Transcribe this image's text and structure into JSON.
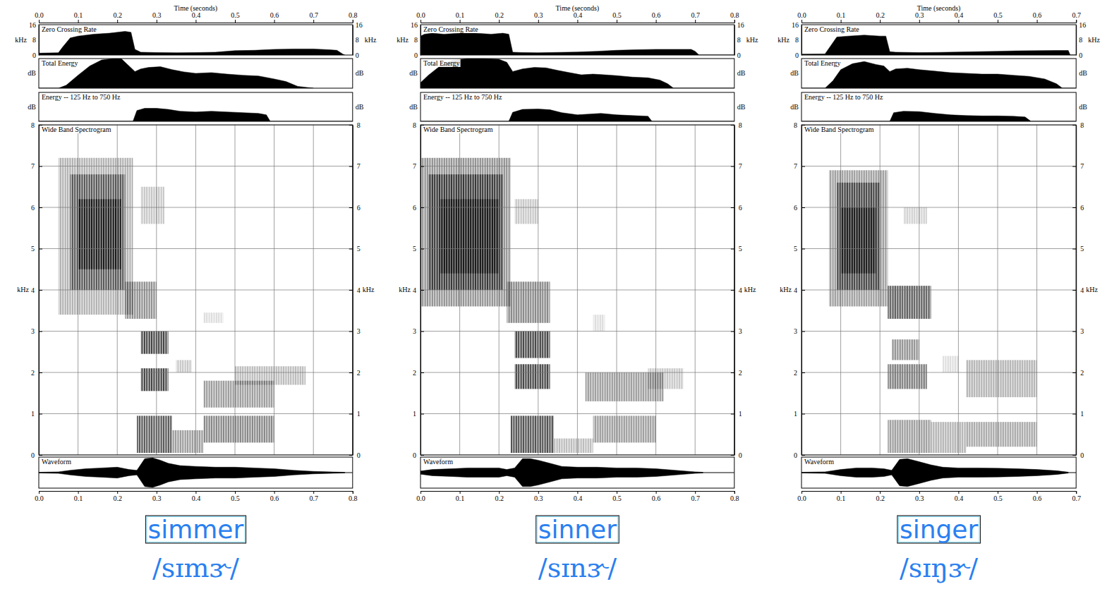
{
  "chart_data": [
    {
      "type": "spectrogram",
      "title": "simmer",
      "subtitle": "/sɪmɝ/",
      "x_label": "Time (seconds)",
      "xlim": [
        0,
        0.8
      ],
      "xticks": [
        {
          "value": 0,
          "label": "0.0"
        },
        0.1,
        0.2,
        0.3,
        0.4,
        0.5,
        0.6,
        0.7,
        0.8
      ],
      "tracks": [
        {
          "type": "area",
          "title": "Zero Crossing Rate",
          "y_label": "kHz",
          "ylim": [
            0,
            16
          ],
          "yticks": [
            0,
            8,
            16
          ],
          "x": [
            0,
            0.05,
            0.06,
            0.08,
            0.1,
            0.14,
            0.18,
            0.2,
            0.22,
            0.235,
            0.245,
            0.26,
            0.3,
            0.35,
            0.4,
            0.45,
            0.5,
            0.55,
            0.6,
            0.65,
            0.7,
            0.74,
            0.76,
            0.775,
            0.78
          ],
          "values": [
            1,
            1.2,
            4,
            9,
            10,
            11,
            11.5,
            12,
            12.5,
            12,
            3,
            1.5,
            1.3,
            1.2,
            1.3,
            1.5,
            2.3,
            2.5,
            3,
            3.2,
            3.2,
            2.8,
            2.5,
            0.5,
            0
          ]
        },
        {
          "type": "area",
          "title": "Total Energy",
          "y_label": "dB",
          "ylim": [
            0,
            80
          ],
          "tick_labels": false,
          "x": [
            0,
            0.05,
            0.07,
            0.1,
            0.13,
            0.16,
            0.19,
            0.21,
            0.23,
            0.245,
            0.26,
            0.28,
            0.31,
            0.34,
            0.37,
            0.4,
            0.44,
            0.48,
            0.52,
            0.56,
            0.6,
            0.63,
            0.66,
            0.7
          ],
          "values": [
            0,
            0,
            8,
            35,
            60,
            76,
            80,
            80,
            60,
            45,
            52,
            56,
            58,
            50,
            44,
            40,
            42,
            38,
            35,
            33,
            25,
            18,
            5,
            0
          ]
        },
        {
          "type": "area",
          "title": "Energy -- 125 Hz to 750 Hz",
          "y_label": "dB",
          "ylim": [
            0,
            80
          ],
          "tick_labels": false,
          "x": [
            0,
            0.24,
            0.25,
            0.27,
            0.3,
            0.33,
            0.36,
            0.4,
            0.44,
            0.48,
            0.52,
            0.56,
            0.58,
            0.59,
            0.8
          ],
          "values": [
            0,
            0,
            30,
            36,
            36,
            33,
            28,
            26,
            28,
            26,
            24,
            22,
            18,
            0,
            0
          ]
        }
      ],
      "spectrogram": {
        "title": "Wide Band Spectrogram",
        "y_label": "kHz",
        "ylim": [
          0,
          8
        ],
        "yticks": [
          0,
          1,
          2,
          3,
          4,
          5,
          6,
          7,
          8
        ],
        "grid": true,
        "cells": [
          {
            "t0": 0.05,
            "t1": 0.24,
            "f0": 3.4,
            "f1": 7.2,
            "level": 0.35
          },
          {
            "t0": 0.08,
            "t1": 0.22,
            "f0": 4.0,
            "f1": 6.8,
            "level": 0.6
          },
          {
            "t0": 0.1,
            "t1": 0.21,
            "f0": 4.5,
            "f1": 6.2,
            "level": 0.85
          },
          {
            "t0": 0.25,
            "t1": 0.34,
            "f0": 0.05,
            "f1": 0.95,
            "level": 0.75
          },
          {
            "t0": 0.26,
            "t1": 0.33,
            "f0": 1.55,
            "f1": 2.1,
            "level": 0.85
          },
          {
            "t0": 0.26,
            "t1": 0.33,
            "f0": 2.45,
            "f1": 3.0,
            "level": 0.85
          },
          {
            "t0": 0.22,
            "t1": 0.3,
            "f0": 3.3,
            "f1": 4.2,
            "level": 0.5
          },
          {
            "t0": 0.26,
            "t1": 0.32,
            "f0": 5.6,
            "f1": 6.5,
            "level": 0.25
          },
          {
            "t0": 0.34,
            "t1": 0.42,
            "f0": 0.05,
            "f1": 0.6,
            "level": 0.45
          },
          {
            "t0": 0.35,
            "t1": 0.39,
            "f0": 2.0,
            "f1": 2.3,
            "level": 0.25
          },
          {
            "t0": 0.42,
            "t1": 0.6,
            "f0": 0.3,
            "f1": 0.95,
            "level": 0.55
          },
          {
            "t0": 0.42,
            "t1": 0.6,
            "f0": 1.15,
            "f1": 1.8,
            "level": 0.45
          },
          {
            "t0": 0.5,
            "t1": 0.68,
            "f0": 1.7,
            "f1": 2.15,
            "level": 0.3
          },
          {
            "t0": 0.42,
            "t1": 0.47,
            "f0": 3.2,
            "f1": 3.45,
            "level": 0.15
          }
        ]
      },
      "waveform": {
        "type": "mirrored_area",
        "title": "Waveform",
        "ylim": [
          -1,
          1
        ],
        "tick_labels": false,
        "x": [
          0,
          0.05,
          0.08,
          0.12,
          0.16,
          0.2,
          0.23,
          0.25,
          0.27,
          0.29,
          0.31,
          0.33,
          0.36,
          0.4,
          0.45,
          0.5,
          0.55,
          0.6,
          0.65,
          0.7,
          0.75,
          0.78
        ],
        "values": [
          0.02,
          0.05,
          0.15,
          0.25,
          0.3,
          0.35,
          0.2,
          0.15,
          0.9,
          0.95,
          0.8,
          0.6,
          0.45,
          0.4,
          0.35,
          0.35,
          0.3,
          0.25,
          0.15,
          0.08,
          0.04,
          0.02
        ]
      }
    },
    {
      "type": "spectrogram",
      "title": "sinner",
      "subtitle": "/sɪnɝ/",
      "x_label": "Time (seconds)",
      "xlim": [
        0,
        0.8
      ],
      "xticks": [
        {
          "value": 0,
          "label": "0.0"
        },
        0.1,
        0.2,
        0.3,
        0.4,
        0.5,
        0.6,
        0.7,
        0.8
      ],
      "tracks": [
        {
          "type": "area",
          "title": "Zero Crossing Rate",
          "y_label": "kHz",
          "ylim": [
            0,
            16
          ],
          "yticks": [
            0,
            8,
            16
          ],
          "x": [
            0,
            0.01,
            0.03,
            0.06,
            0.1,
            0.14,
            0.18,
            0.21,
            0.225,
            0.235,
            0.26,
            0.3,
            0.35,
            0.4,
            0.45,
            0.5,
            0.55,
            0.6,
            0.65,
            0.69,
            0.7,
            0.71,
            0.8
          ],
          "values": [
            10,
            11,
            11.5,
            11,
            11.5,
            11.5,
            11,
            11.5,
            11,
            1.5,
            1.3,
            1.2,
            1.4,
            1.6,
            2,
            2.5,
            2.8,
            3,
            3,
            3,
            2,
            0,
            0
          ]
        },
        {
          "type": "area",
          "title": "Total Energy",
          "y_label": "dB",
          "ylim": [
            0,
            80
          ],
          "tick_labels": false,
          "x": [
            0,
            0.02,
            0.05,
            0.08,
            0.12,
            0.16,
            0.2,
            0.22,
            0.235,
            0.26,
            0.29,
            0.32,
            0.35,
            0.38,
            0.41,
            0.44,
            0.47,
            0.5,
            0.54,
            0.58,
            0.61,
            0.63,
            0.645,
            0.8
          ],
          "values": [
            15,
            35,
            60,
            75,
            80,
            80,
            78,
            70,
            45,
            52,
            56,
            55,
            48,
            42,
            36,
            38,
            36,
            34,
            30,
            28,
            22,
            12,
            0,
            0
          ]
        },
        {
          "type": "area",
          "title": "Energy -- 125 Hz to 750 Hz",
          "y_label": "dB",
          "ylim": [
            0,
            80
          ],
          "tick_labels": false,
          "x": [
            0,
            0.225,
            0.235,
            0.26,
            0.3,
            0.33,
            0.36,
            0.4,
            0.43,
            0.46,
            0.5,
            0.54,
            0.58,
            0.59,
            0.8
          ],
          "values": [
            0,
            0,
            25,
            33,
            34,
            32,
            24,
            18,
            20,
            22,
            18,
            16,
            14,
            0,
            0
          ]
        }
      ],
      "spectrogram": {
        "title": "Wide Band Spectrogram",
        "y_label": "kHz",
        "ylim": [
          0,
          8
        ],
        "yticks": [
          0,
          1,
          2,
          3,
          4,
          5,
          6,
          7,
          8
        ],
        "grid": true,
        "cells": [
          {
            "t0": 0.0,
            "t1": 0.23,
            "f0": 3.6,
            "f1": 7.2,
            "level": 0.5
          },
          {
            "t0": 0.02,
            "t1": 0.21,
            "f0": 4.0,
            "f1": 6.8,
            "level": 0.75
          },
          {
            "t0": 0.05,
            "t1": 0.2,
            "f0": 4.4,
            "f1": 6.2,
            "level": 0.9
          },
          {
            "t0": 0.23,
            "t1": 0.34,
            "f0": 0.05,
            "f1": 0.95,
            "level": 0.8
          },
          {
            "t0": 0.24,
            "t1": 0.33,
            "f0": 1.6,
            "f1": 2.2,
            "level": 0.85
          },
          {
            "t0": 0.24,
            "t1": 0.33,
            "f0": 2.35,
            "f1": 3.0,
            "level": 0.85
          },
          {
            "t0": 0.22,
            "t1": 0.33,
            "f0": 3.2,
            "f1": 4.2,
            "level": 0.55
          },
          {
            "t0": 0.24,
            "t1": 0.3,
            "f0": 5.6,
            "f1": 6.2,
            "level": 0.25
          },
          {
            "t0": 0.34,
            "t1": 0.44,
            "f0": 0.05,
            "f1": 0.4,
            "level": 0.3
          },
          {
            "t0": 0.44,
            "t1": 0.6,
            "f0": 0.3,
            "f1": 0.95,
            "level": 0.45
          },
          {
            "t0": 0.42,
            "t1": 0.62,
            "f0": 1.3,
            "f1": 2.0,
            "level": 0.45
          },
          {
            "t0": 0.58,
            "t1": 0.67,
            "f0": 1.6,
            "f1": 2.1,
            "level": 0.25
          },
          {
            "t0": 0.44,
            "t1": 0.47,
            "f0": 3.0,
            "f1": 3.4,
            "level": 0.15
          }
        ]
      },
      "waveform": {
        "type": "mirrored_area",
        "title": "Waveform",
        "ylim": [
          -1,
          1
        ],
        "tick_labels": false,
        "x": [
          0,
          0.03,
          0.08,
          0.12,
          0.16,
          0.2,
          0.22,
          0.24,
          0.26,
          0.28,
          0.3,
          0.33,
          0.36,
          0.4,
          0.45,
          0.5,
          0.55,
          0.6,
          0.65,
          0.7,
          0.72
        ],
        "values": [
          0.1,
          0.2,
          0.25,
          0.3,
          0.3,
          0.3,
          0.2,
          0.3,
          0.9,
          0.9,
          0.8,
          0.6,
          0.4,
          0.35,
          0.35,
          0.3,
          0.3,
          0.25,
          0.15,
          0.05,
          0.02
        ]
      }
    },
    {
      "type": "spectrogram",
      "title": "singer",
      "subtitle": "/sɪŋɝ/",
      "x_label": "Time (seconds)",
      "xlim": [
        0,
        0.7
      ],
      "xticks": [
        {
          "value": 0,
          "label": "0.0"
        },
        0.1,
        0.2,
        0.3,
        0.4,
        0.5,
        0.6,
        0.7
      ],
      "tracks": [
        {
          "type": "area",
          "title": "Zero Crossing Rate",
          "y_label": "kHz",
          "ylim": [
            0,
            16
          ],
          "yticks": [
            0,
            8,
            16
          ],
          "x": [
            0,
            0.06,
            0.075,
            0.09,
            0.12,
            0.16,
            0.2,
            0.215,
            0.225,
            0.24,
            0.3,
            0.35,
            0.4,
            0.45,
            0.5,
            0.55,
            0.6,
            0.65,
            0.68,
            0.685,
            0.7
          ],
          "values": [
            0.5,
            0.6,
            5,
            9.5,
            10,
            10.5,
            10,
            10,
            1.8,
            1.5,
            1.3,
            1.4,
            1.6,
            1.8,
            2,
            2.2,
            2.3,
            2.4,
            2.4,
            0,
            0
          ]
        },
        {
          "type": "area",
          "title": "Total Energy",
          "y_label": "dB",
          "ylim": [
            0,
            80
          ],
          "tick_labels": false,
          "x": [
            0,
            0.06,
            0.08,
            0.1,
            0.13,
            0.16,
            0.19,
            0.21,
            0.225,
            0.24,
            0.27,
            0.3,
            0.34,
            0.38,
            0.42,
            0.46,
            0.5,
            0.54,
            0.58,
            0.62,
            0.65,
            0.665,
            0.7
          ],
          "values": [
            0,
            0,
            20,
            50,
            66,
            72,
            64,
            60,
            45,
            52,
            54,
            50,
            46,
            42,
            40,
            38,
            38,
            35,
            32,
            25,
            12,
            0,
            0
          ]
        },
        {
          "type": "area",
          "title": "Energy -- 125 Hz to 750 Hz",
          "y_label": "dB",
          "ylim": [
            0,
            80
          ],
          "tick_labels": false,
          "x": [
            0,
            0.225,
            0.235,
            0.26,
            0.3,
            0.34,
            0.38,
            0.42,
            0.46,
            0.5,
            0.54,
            0.57,
            0.585,
            0.7
          ],
          "values": [
            0,
            0,
            24,
            28,
            27,
            22,
            18,
            16,
            15,
            15,
            14,
            12,
            0,
            0
          ]
        }
      ],
      "spectrogram": {
        "title": "Wide Band Spectrogram",
        "y_label": "kHz",
        "ylim": [
          0,
          8
        ],
        "yticks": [
          0,
          1,
          2,
          3,
          4,
          5,
          6,
          7,
          8
        ],
        "grid": true,
        "cells": [
          {
            "t0": 0.07,
            "t1": 0.22,
            "f0": 3.6,
            "f1": 6.9,
            "level": 0.45
          },
          {
            "t0": 0.09,
            "t1": 0.2,
            "f0": 4.0,
            "f1": 6.6,
            "level": 0.7
          },
          {
            "t0": 0.1,
            "t1": 0.19,
            "f0": 4.4,
            "f1": 6.0,
            "level": 0.9
          },
          {
            "t0": 0.22,
            "t1": 0.33,
            "f0": 0.05,
            "f1": 0.85,
            "level": 0.45
          },
          {
            "t0": 0.22,
            "t1": 0.32,
            "f0": 1.6,
            "f1": 2.2,
            "level": 0.6
          },
          {
            "t0": 0.23,
            "t1": 0.3,
            "f0": 2.3,
            "f1": 2.8,
            "level": 0.5
          },
          {
            "t0": 0.22,
            "t1": 0.33,
            "f0": 3.3,
            "f1": 4.1,
            "level": 0.75
          },
          {
            "t0": 0.26,
            "t1": 0.32,
            "f0": 5.6,
            "f1": 6.0,
            "level": 0.2
          },
          {
            "t0": 0.33,
            "t1": 0.42,
            "f0": 0.05,
            "f1": 0.8,
            "level": 0.35
          },
          {
            "t0": 0.36,
            "t1": 0.4,
            "f0": 2.0,
            "f1": 2.4,
            "level": 0.15
          },
          {
            "t0": 0.42,
            "t1": 0.6,
            "f0": 0.2,
            "f1": 0.8,
            "level": 0.4
          },
          {
            "t0": 0.42,
            "t1": 0.6,
            "f0": 1.4,
            "f1": 2.3,
            "level": 0.35
          }
        ]
      },
      "waveform": {
        "type": "mirrored_area",
        "title": "Waveform",
        "ylim": [
          -1,
          1
        ],
        "tick_labels": false,
        "x": [
          0,
          0.06,
          0.1,
          0.14,
          0.18,
          0.21,
          0.23,
          0.25,
          0.27,
          0.3,
          0.33,
          0.36,
          0.4,
          0.45,
          0.5,
          0.55,
          0.6,
          0.65,
          0.68
        ],
        "values": [
          0.02,
          0.05,
          0.2,
          0.3,
          0.3,
          0.25,
          0.15,
          0.85,
          0.9,
          0.7,
          0.5,
          0.35,
          0.3,
          0.3,
          0.28,
          0.25,
          0.2,
          0.12,
          0.03
        ]
      }
    }
  ]
}
